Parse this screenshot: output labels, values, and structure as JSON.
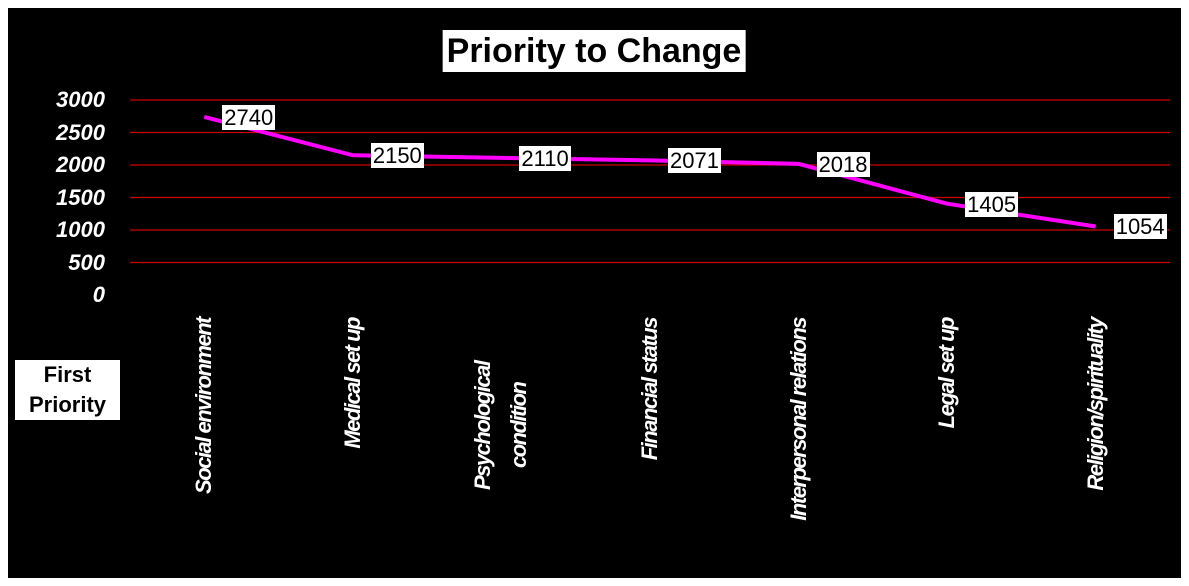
{
  "chart_data": {
    "type": "line",
    "title": "Priority to Change",
    "x_axis_title": "First Priority",
    "categories": [
      "Social environment",
      "Medical set up",
      "Psychological condition",
      "Financial status",
      "Interpersonal relations",
      "Legal set up",
      "Religion/spirituality"
    ],
    "series": [
      {
        "name": "First Priority",
        "color": "#ff00ff",
        "values": [
          2740,
          2150,
          2110,
          2071,
          2018,
          1405,
          1054
        ]
      }
    ],
    "ylim": [
      0,
      3000
    ],
    "yticks": [
      0,
      500,
      1000,
      1500,
      2000,
      2500,
      3000
    ],
    "grid": true,
    "grid_color": "#cc0000"
  }
}
